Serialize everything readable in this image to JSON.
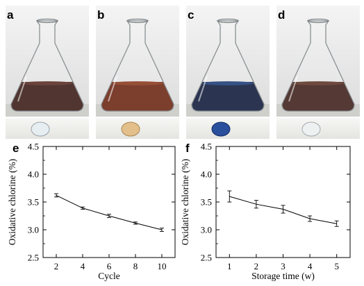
{
  "panels": {
    "a": "a",
    "b": "b",
    "c": "c",
    "d": "d",
    "e": "e",
    "f": "f"
  },
  "photos": [
    {
      "label": "a",
      "liquid_color": "#3a1a14",
      "liquid_highlight": "#5a2c22",
      "drop_color": "#e6eef2",
      "drop_edge": "#9aa3a8"
    },
    {
      "label": "b",
      "liquid_color": "#6a2410",
      "liquid_highlight": "#8c3a1e",
      "drop_color": "#e3bf8c",
      "drop_edge": "#a8874e"
    },
    {
      "label": "c",
      "liquid_color": "#0e1a3a",
      "liquid_highlight": "#1d3d7a",
      "drop_color": "#2a4f9c",
      "drop_edge": "#132a66"
    },
    {
      "label": "d",
      "liquid_color": "#3d1e18",
      "liquid_highlight": "#5e3326",
      "drop_color": "#eef1f2",
      "drop_edge": "#a3a9ac"
    }
  ],
  "chart_data": [
    {
      "panel": "e",
      "type": "line",
      "xlabel": "Cycle",
      "ylabel": "Oxidative chlorine (%)",
      "x": [
        2,
        4,
        6,
        8,
        10
      ],
      "y": [
        3.62,
        3.39,
        3.25,
        3.12,
        3.0
      ],
      "yerr": [
        0.03,
        0.02,
        0.03,
        0.02,
        0.03
      ],
      "xlim": [
        1,
        11
      ],
      "ylim": [
        2.5,
        4.5
      ],
      "xticks": [
        "2",
        "4",
        "6",
        "8",
        "10"
      ],
      "yticks": [
        "2.5",
        "3.0",
        "3.5",
        "4.0",
        "4.5"
      ],
      "grid": false
    },
    {
      "panel": "f",
      "type": "line",
      "xlabel": "Storage time (w)",
      "ylabel": "Oxidative chlorine (%)",
      "x": [
        1,
        2,
        3,
        4,
        5
      ],
      "y": [
        3.6,
        3.46,
        3.37,
        3.2,
        3.11
      ],
      "yerr": [
        0.1,
        0.07,
        0.07,
        0.05,
        0.05
      ],
      "xlim": [
        0.5,
        5.5
      ],
      "ylim": [
        2.5,
        4.5
      ],
      "xticks": [
        "1",
        "2",
        "3",
        "4",
        "5"
      ],
      "yticks": [
        "2.5",
        "3.0",
        "3.5",
        "4.0",
        "4.5"
      ],
      "grid": false
    }
  ]
}
